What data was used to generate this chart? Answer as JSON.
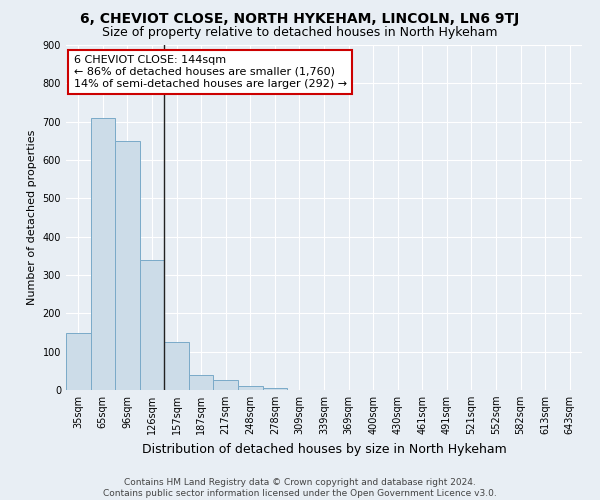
{
  "title": "6, CHEVIOT CLOSE, NORTH HYKEHAM, LINCOLN, LN6 9TJ",
  "subtitle": "Size of property relative to detached houses in North Hykeham",
  "xlabel": "Distribution of detached houses by size in North Hykeham",
  "ylabel": "Number of detached properties",
  "footer_line1": "Contains HM Land Registry data © Crown copyright and database right 2024.",
  "footer_line2": "Contains public sector information licensed under the Open Government Licence v3.0.",
  "categories": [
    "35sqm",
    "65sqm",
    "96sqm",
    "126sqm",
    "157sqm",
    "187sqm",
    "217sqm",
    "248sqm",
    "278sqm",
    "309sqm",
    "339sqm",
    "369sqm",
    "400sqm",
    "430sqm",
    "461sqm",
    "491sqm",
    "521sqm",
    "552sqm",
    "582sqm",
    "613sqm",
    "643sqm"
  ],
  "values": [
    150,
    710,
    650,
    340,
    125,
    40,
    27,
    10,
    5,
    0,
    0,
    0,
    0,
    0,
    0,
    0,
    0,
    0,
    0,
    0,
    0
  ],
  "bar_color": "#ccdce8",
  "bar_edge_color": "#7aaac8",
  "annotation_text_line1": "6 CHEVIOT CLOSE: 144sqm",
  "annotation_text_line2": "← 86% of detached houses are smaller (1,760)",
  "annotation_text_line3": "14% of semi-detached houses are larger (292) →",
  "annotation_box_color": "white",
  "annotation_border_color": "#cc0000",
  "ylim": [
    0,
    900
  ],
  "yticks": [
    0,
    100,
    200,
    300,
    400,
    500,
    600,
    700,
    800,
    900
  ],
  "bg_color": "#e8eef4",
  "plot_bg_color": "#e8eef4",
  "grid_color": "white",
  "vline_color": "#222222",
  "title_fontsize": 10,
  "subtitle_fontsize": 9,
  "xlabel_fontsize": 9,
  "ylabel_fontsize": 8,
  "tick_fontsize": 7,
  "footer_fontsize": 6.5,
  "ann_fontsize": 8
}
